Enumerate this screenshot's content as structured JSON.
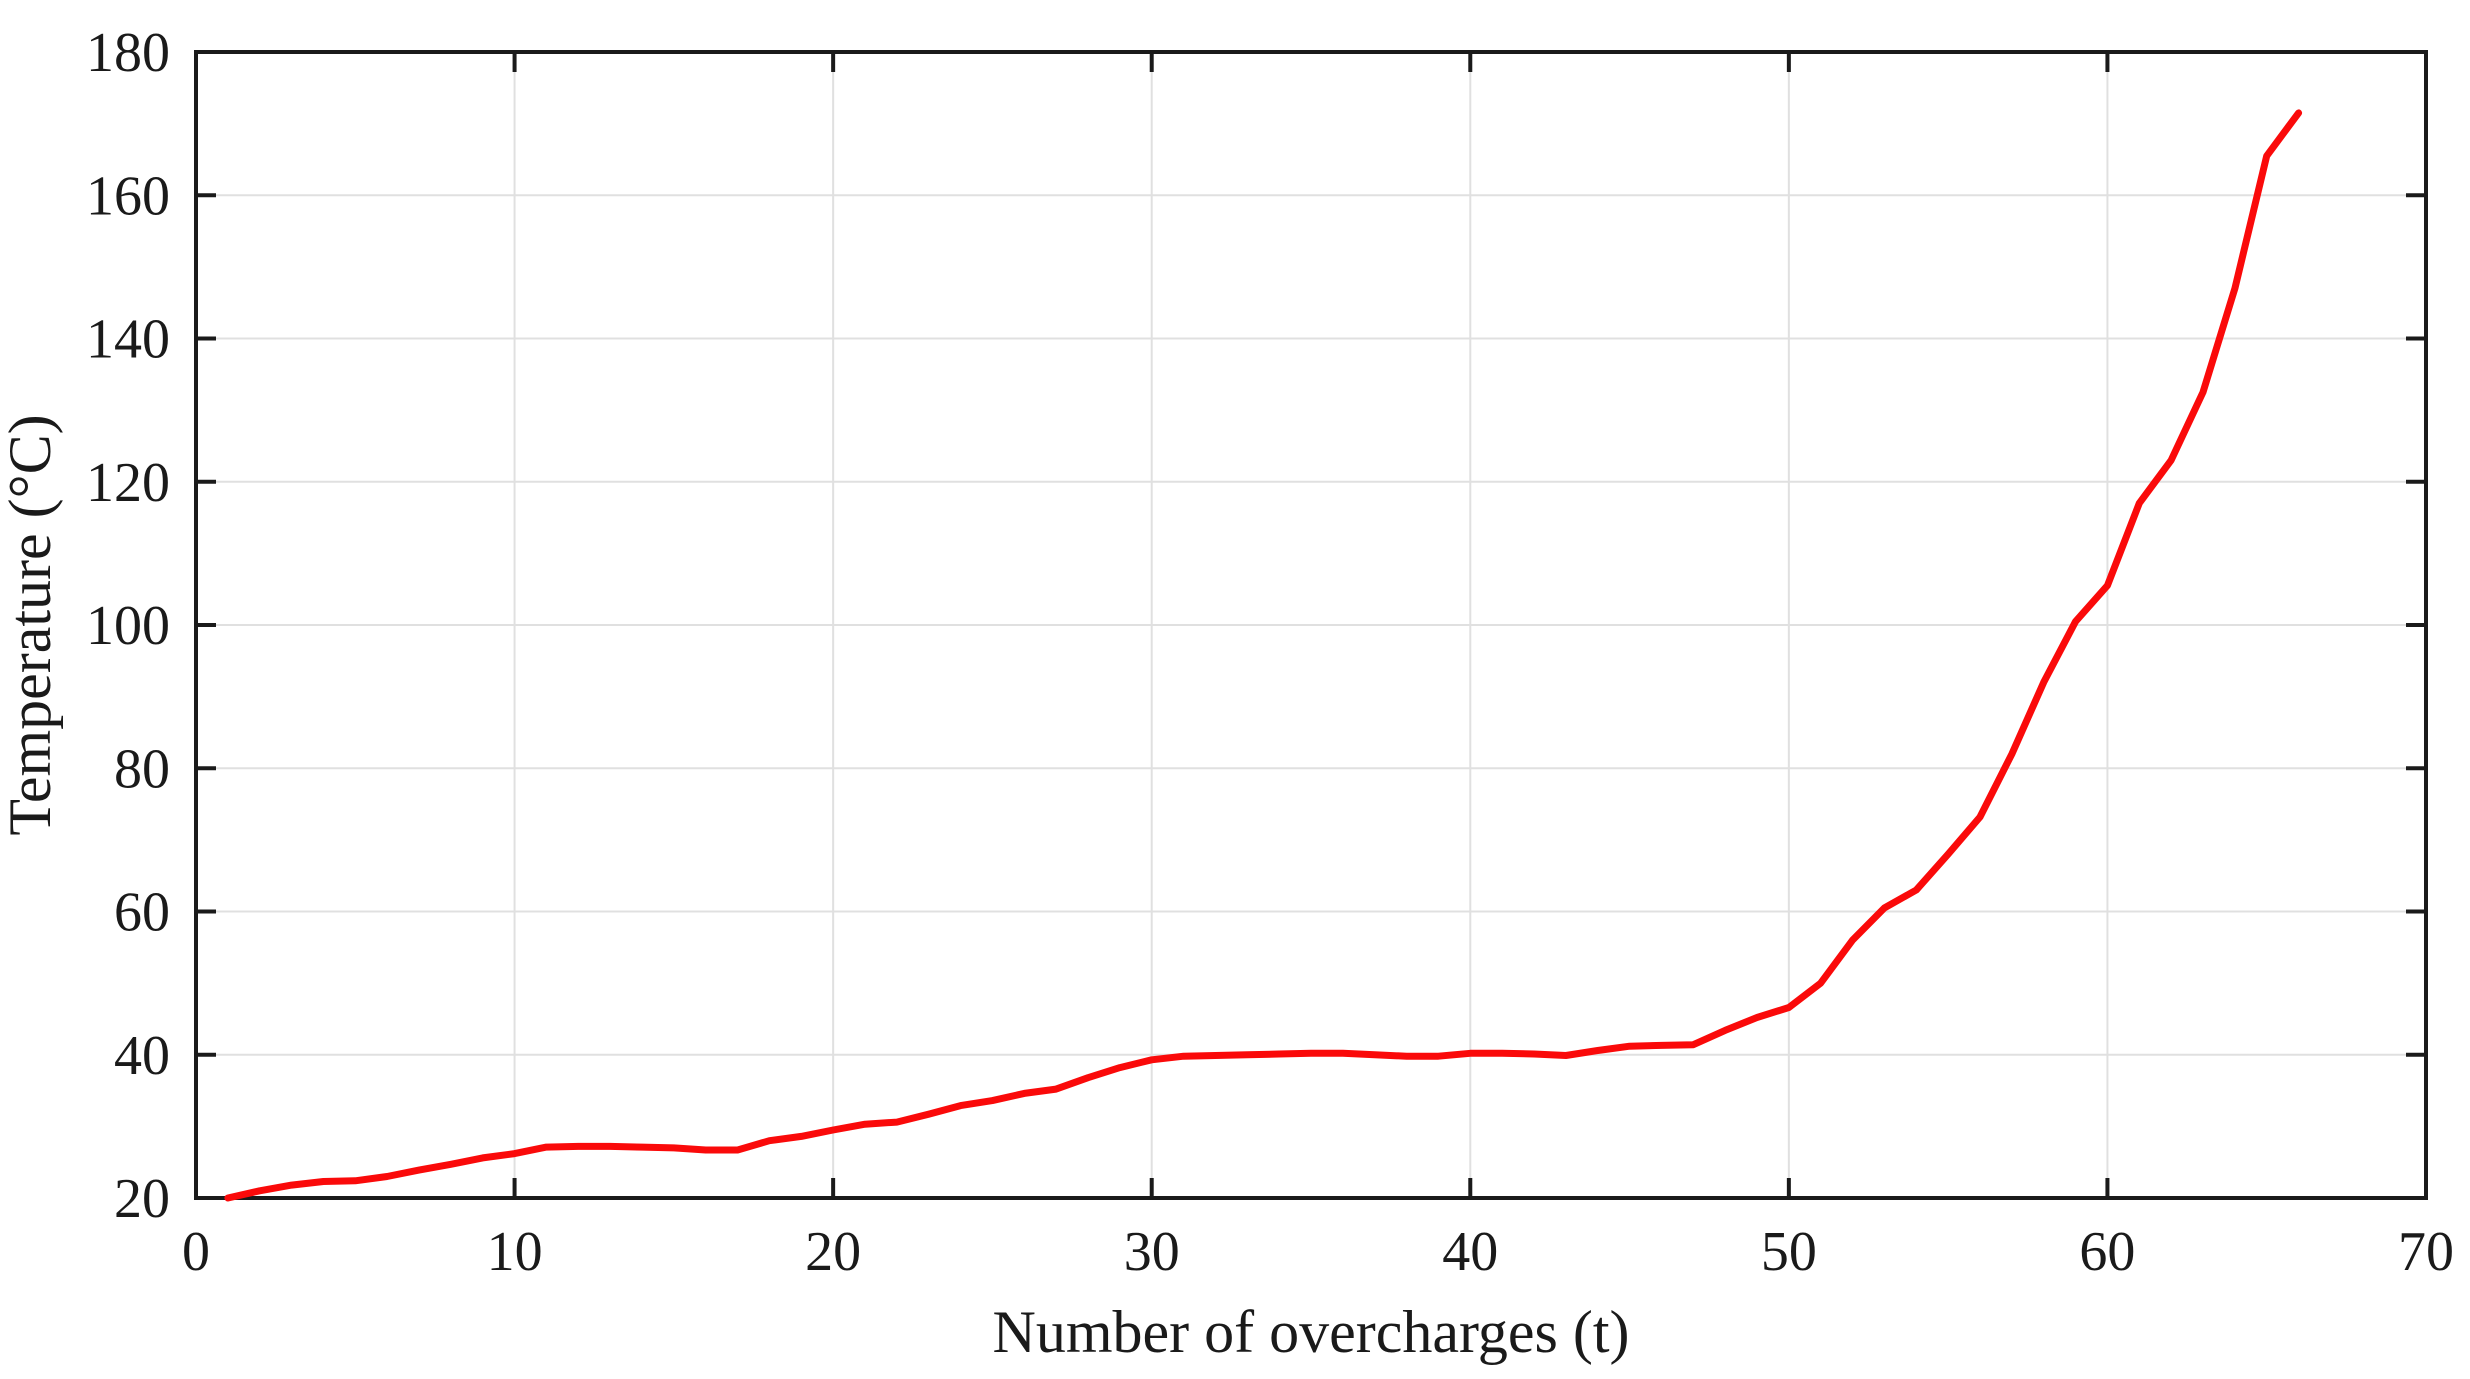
{
  "figure": {
    "background": "#ffffff",
    "axis_color": "#1a1a1a",
    "grid_color": "#e0e0e0",
    "text_color": "#1a1a1a"
  },
  "chart_data": {
    "type": "line",
    "title": "",
    "xlabel": "Number of overcharges (t)",
    "ylabel": "Temperature (°C)",
    "xlim": [
      0,
      70
    ],
    "ylim": [
      20,
      180
    ],
    "xticks": [
      0,
      10,
      20,
      30,
      40,
      50,
      60,
      70
    ],
    "yticks": [
      20,
      40,
      60,
      80,
      100,
      120,
      140,
      160,
      180
    ],
    "grid": true,
    "box": true,
    "tick_direction": "in",
    "legend": null,
    "series": [
      {
        "name": "Temperature",
        "color": "#fa0a0a",
        "line_width": 7,
        "x": [
          1,
          2,
          3,
          4,
          5,
          6,
          7,
          8,
          9,
          10,
          11,
          12,
          13,
          14,
          15,
          16,
          17,
          18,
          19,
          20,
          21,
          22,
          23,
          24,
          25,
          26,
          27,
          28,
          29,
          30,
          31,
          32,
          33,
          34,
          35,
          36,
          37,
          38,
          39,
          40,
          41,
          42,
          43,
          44,
          45,
          46,
          47,
          48,
          49,
          50,
          51,
          52,
          53,
          54,
          55,
          56,
          57,
          58,
          59,
          60,
          61,
          62,
          63,
          64,
          65,
          66
        ],
        "y": [
          20.0,
          21.0,
          21.8,
          22.3,
          22.4,
          23.0,
          23.9,
          24.7,
          25.6,
          26.2,
          27.1,
          27.2,
          27.2,
          27.1,
          27.0,
          26.7,
          26.7,
          28.0,
          28.6,
          29.5,
          30.3,
          30.6,
          31.7,
          32.9,
          33.6,
          34.6,
          35.2,
          36.8,
          38.2,
          39.3,
          39.8,
          39.9,
          40.0,
          40.1,
          40.2,
          40.2,
          40.0,
          39.8,
          39.8,
          40.2,
          40.2,
          40.1,
          39.9,
          40.6,
          41.2,
          41.3,
          41.4,
          43.4,
          45.2,
          46.6,
          50.0,
          56.0,
          60.5,
          63.0,
          68.0,
          73.2,
          82.0,
          92.0,
          100.5,
          105.5,
          117.0,
          123.0,
          132.5,
          147.0,
          165.5,
          171.5
        ]
      }
    ]
  }
}
